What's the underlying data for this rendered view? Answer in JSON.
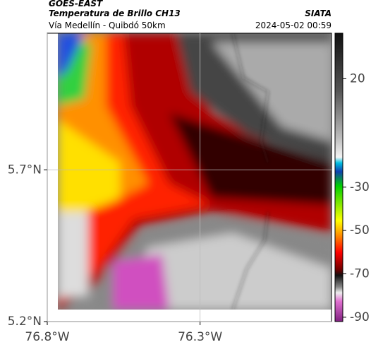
{
  "header": {
    "title": "GOES-EAST",
    "subtitle": "Temperatura de Brillo CH13",
    "source": "SIATA",
    "route": "Vía Medellín - Quibdó 50km",
    "timestamp": "2024-05-02 00:59"
  },
  "map": {
    "xlim": [
      -76.8,
      -75.87
    ],
    "ylim": [
      5.2,
      6.15
    ],
    "xticks": [
      {
        "value": -76.8,
        "label": "76.8°W"
      },
      {
        "value": -76.3,
        "label": "76.3°W"
      }
    ],
    "yticks": [
      {
        "value": 5.7,
        "label": "5.7°N"
      },
      {
        "value": 5.2,
        "label": "5.2°N"
      }
    ]
  },
  "colorbar": {
    "lim": [
      -92,
      41
    ],
    "ticks": [
      20,
      -30,
      -50,
      -70,
      -90
    ]
  }
}
